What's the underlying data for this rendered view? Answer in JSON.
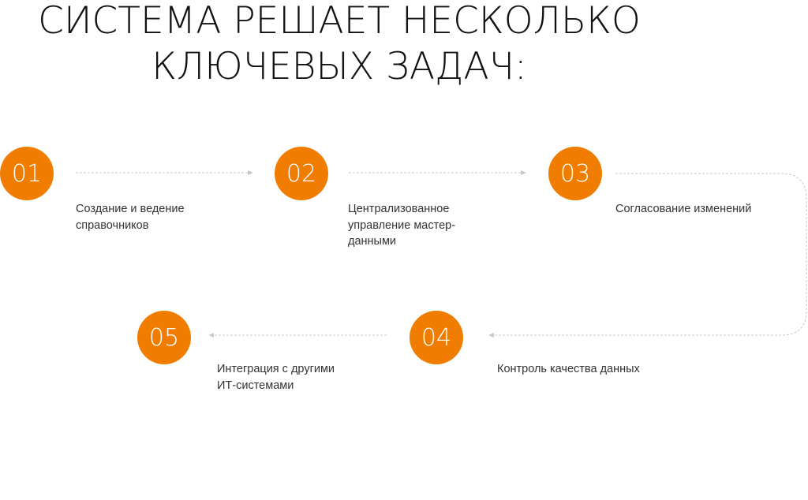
{
  "title": {
    "line1": "СИСТЕМА РЕШАЕТ НЕСКОЛЬКО",
    "line2": "КЛЮЧЕВЫХ ЗАДАЧ:"
  },
  "accent_color": "#F07D00",
  "steps": [
    {
      "number": "01",
      "label_lines": [
        "Создание и ведение",
        "справочников"
      ]
    },
    {
      "number": "02",
      "label_lines": [
        "Централизованное",
        "управление мастер-",
        "данными"
      ]
    },
    {
      "number": "03",
      "label_lines": [
        "Согласование изменений"
      ]
    },
    {
      "number": "04",
      "label_lines": [
        "Контроль качества данных"
      ]
    },
    {
      "number": "05",
      "label_lines": [
        "Интеграция с другими",
        "ИТ-системами"
      ]
    }
  ]
}
